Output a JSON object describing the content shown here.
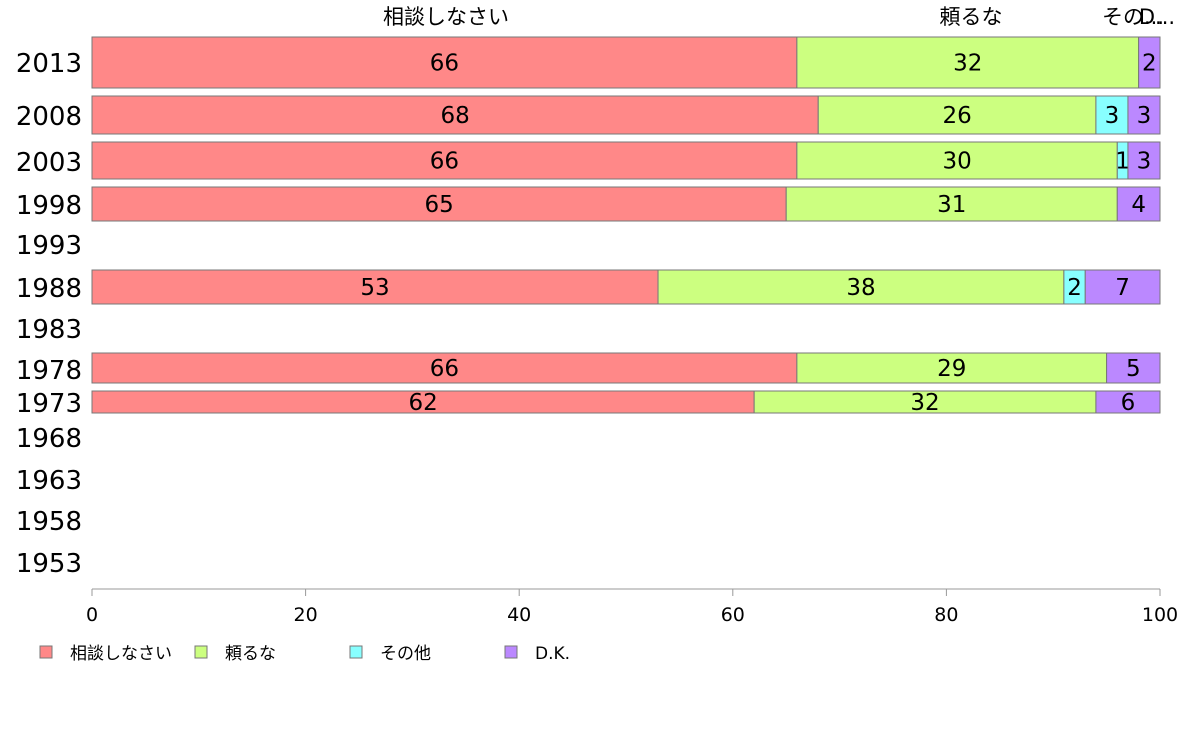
{
  "chart_data": {
    "type": "bar",
    "orientation": "horizontal",
    "stacked": true,
    "categories": [
      "2013",
      "2008",
      "2003",
      "1998",
      "1993",
      "1988",
      "1983",
      "1978",
      "1973",
      "1968",
      "1963",
      "1958",
      "1953"
    ],
    "series": [
      {
        "name": "相談しなさい",
        "color": "#ff8888",
        "values": [
          66,
          68,
          66,
          65,
          null,
          53,
          null,
          66,
          62,
          null,
          null,
          null,
          null
        ]
      },
      {
        "name": "頼るな",
        "color": "#ccff80",
        "values": [
          32,
          26,
          30,
          31,
          null,
          38,
          null,
          29,
          32,
          null,
          null,
          null,
          null
        ]
      },
      {
        "name": "その他",
        "color": "#88ffff",
        "values": [
          0,
          3,
          1,
          0,
          null,
          2,
          null,
          0,
          0,
          null,
          null,
          null,
          null
        ]
      },
      {
        "name": "D.K.",
        "color": "#bb88ff",
        "values": [
          2,
          3,
          3,
          4,
          null,
          7,
          null,
          5,
          6,
          null,
          null,
          null,
          null
        ]
      }
    ],
    "top_labels": [
      "相談しなさい",
      "頼るな",
      "その...",
      "D..."
    ],
    "x_ticks": [
      "0",
      "20",
      "40",
      "60",
      "80",
      "100"
    ],
    "xlim": [
      0,
      100
    ],
    "grid": false,
    "legend_position": "bottom-left",
    "legend": [
      "相談しなさい",
      "頼るな",
      "その他",
      "D.K."
    ]
  }
}
